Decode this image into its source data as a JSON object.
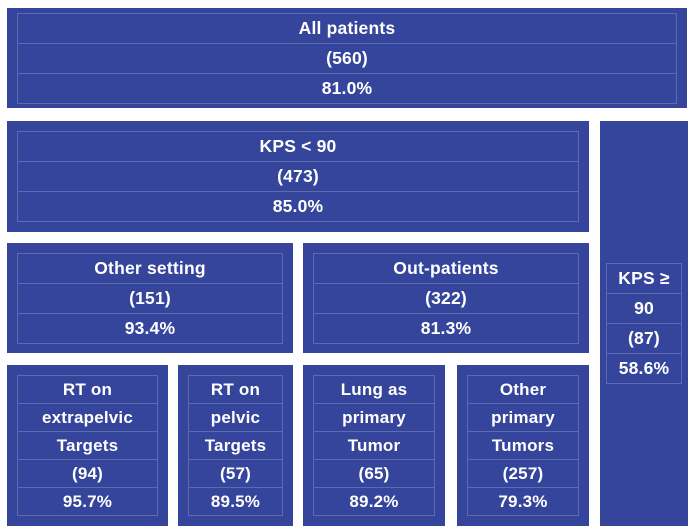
{
  "figure": {
    "background_color": "#ffffff",
    "box_color": "#36459c",
    "grid_line_color": "rgba(255,255,255,0.20)",
    "text_color": "#ffffff"
  },
  "boxes": {
    "all_patients": {
      "label": "All patients",
      "count": "(560)",
      "percent": "81.0%"
    },
    "kps_lt_90": {
      "label": "KPS < 90",
      "count": "(473)",
      "percent": "85.0%"
    },
    "kps_ge_90": {
      "label_line1": "KPS ≥",
      "label_line2": "90",
      "count": "(87)",
      "percent": "58.6%"
    },
    "other_setting": {
      "label": "Other setting",
      "count": "(151)",
      "percent": "93.4%"
    },
    "out_patients": {
      "label": "Out-patients",
      "count": "(322)",
      "percent": "81.3%"
    },
    "rt_extrapelvic": {
      "label_line1": "RT on",
      "label_line2": "extrapelvic",
      "label_line3": "Targets",
      "count": "(94)",
      "percent": "95.7%"
    },
    "rt_pelvic": {
      "label_line1": "RT on",
      "label_line2": "pelvic",
      "label_line3": "Targets",
      "count": "(57)",
      "percent": "89.5%"
    },
    "lung_primary": {
      "label_line1": "Lung as",
      "label_line2": "primary",
      "label_line3": "Tumor",
      "count": "(65)",
      "percent": "89.2%"
    },
    "other_primary": {
      "label_line1": "Other",
      "label_line2": "primary",
      "label_line3": "Tumors",
      "count": "(257)",
      "percent": "79.3%"
    }
  }
}
